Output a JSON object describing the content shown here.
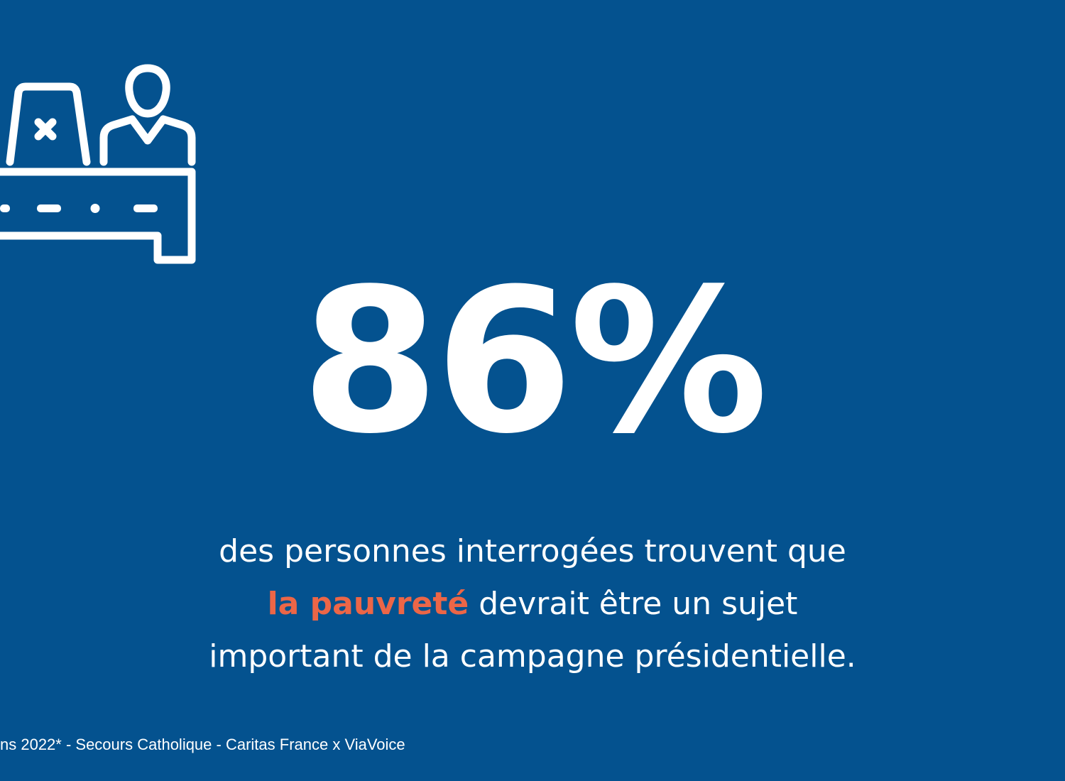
{
  "colors": {
    "background": "#04528f",
    "text": "#ffffff",
    "accent": "#ec6647"
  },
  "icon": "voting-booth-icon",
  "stat": {
    "value": "86%"
  },
  "caption": {
    "line1": "des personnes interrogées trouvent que",
    "highlight": "la pauvreté",
    "line2_rest": " devrait être un sujet",
    "line3": "important de la campagne présidentielle."
  },
  "source": {
    "text": "ns 2022* - Secours Catholique - Caritas France x ViaVoice"
  }
}
